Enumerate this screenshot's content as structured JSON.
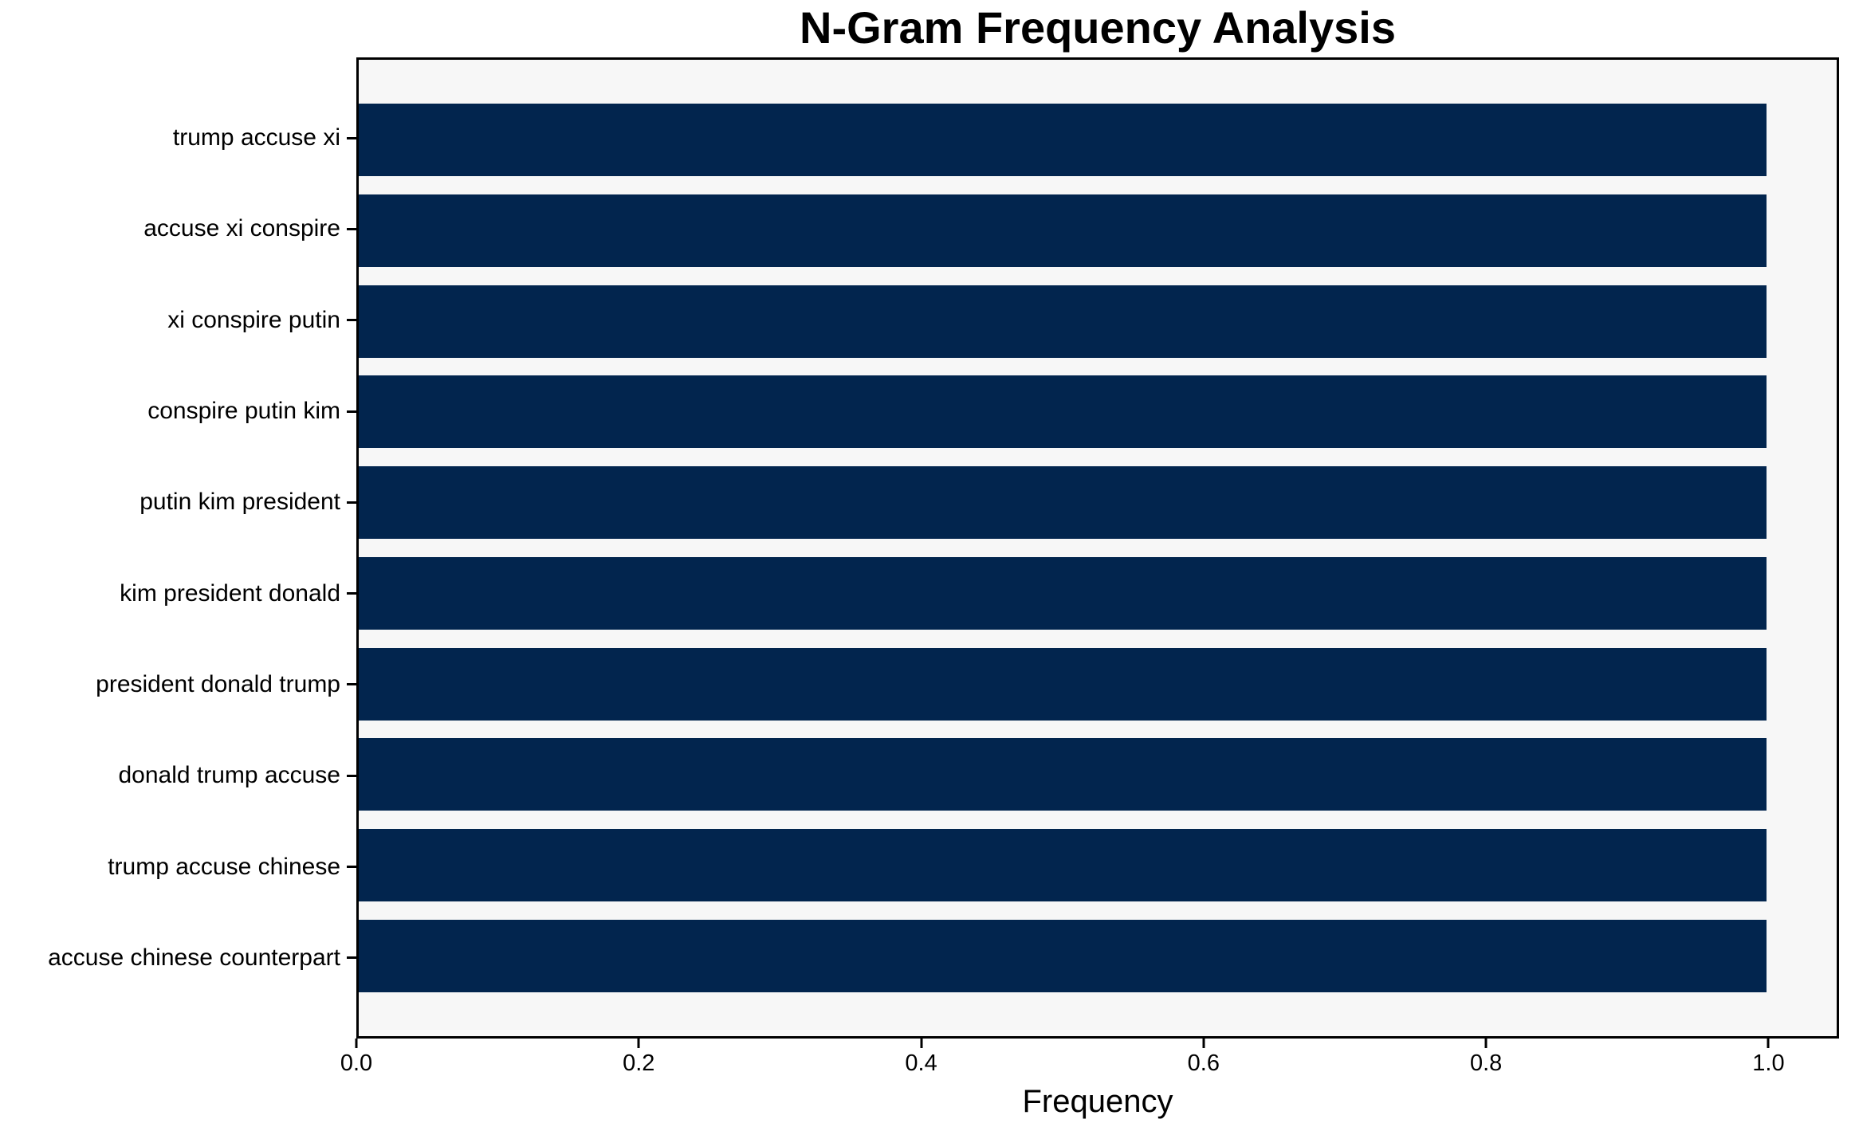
{
  "chart_data": {
    "type": "bar",
    "orientation": "horizontal",
    "title": "N-Gram Frequency Analysis",
    "xlabel": "Frequency",
    "ylabel": "",
    "categories": [
      "trump accuse xi",
      "accuse xi conspire",
      "xi conspire putin",
      "conspire putin kim",
      "putin kim president",
      "kim president donald",
      "president donald trump",
      "donald trump accuse",
      "trump accuse chinese",
      "accuse chinese counterpart"
    ],
    "values": [
      1.0,
      1.0,
      1.0,
      1.0,
      1.0,
      1.0,
      1.0,
      1.0,
      1.0,
      1.0
    ],
    "xlim": [
      0,
      1.05
    ],
    "xticks": {
      "values": [
        0.0,
        0.2,
        0.4,
        0.6,
        0.8,
        1.0
      ],
      "labels": [
        "0.0",
        "0.2",
        "0.4",
        "0.6",
        "0.8",
        "1.0"
      ]
    },
    "grid": false,
    "legend": null,
    "colors": {
      "bar": "#02254e",
      "plot_background": "#f7f7f7",
      "figure_background": "#ffffff",
      "spine": "#000000",
      "text": "#000000"
    }
  }
}
